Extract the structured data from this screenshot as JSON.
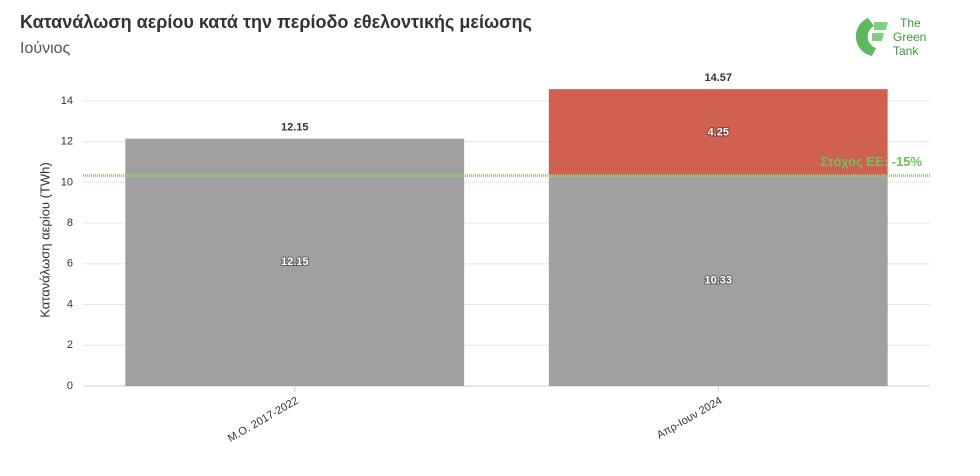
{
  "chart_data": {
    "type": "stacked-bar",
    "title": "Κατανάλωση αερίου κατά την περίοδο εθελοντικής μείωσης",
    "subtitle": "Ιούνιος",
    "y_label": "Κατανάλωση αερίου (TWh)",
    "categories": [
      "Μ.Ο. 2017-2022",
      "Απρ-Ιουν 2024"
    ],
    "series": [
      {
        "color": "#a0a0a0",
        "values": [
          12.15,
          10.33
        ]
      },
      {
        "color": "#d06050",
        "values": [
          null,
          4.25
        ]
      }
    ],
    "totals": [
      12.15,
      14.57
    ],
    "reference_line": {
      "value": 10.33,
      "label": "Στόχος ΕΕ: -15%",
      "color": "#8fd07f",
      "label_color": "#6cc25a"
    },
    "ylim": [
      0,
      15
    ],
    "yticks": [
      0,
      2,
      4,
      6,
      8,
      10,
      12,
      14
    ],
    "grid": true,
    "logo": [
      "The",
      "Green",
      "Tank"
    ]
  }
}
